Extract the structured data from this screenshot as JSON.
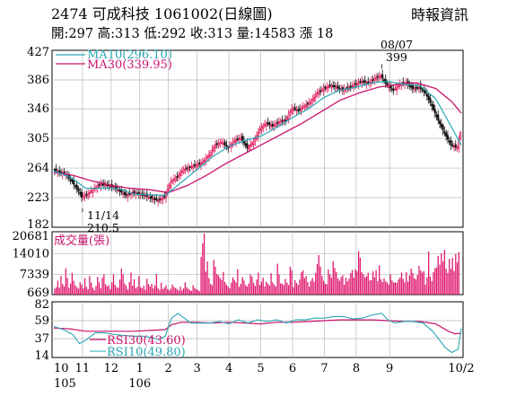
{
  "header": {
    "title": "2474  可成科技 1061002(日線圖)",
    "quote": "開:297 高:313 低:292 收:313 量:14583 漲 18",
    "source": "時報資訊"
  },
  "colors": {
    "background": "#ffffff",
    "grid": "#b9b9b9",
    "frame": "#000000",
    "up_candle": "#e0195a",
    "down_candle": "#111111",
    "ma10": "#2aa7b5",
    "ma30": "#c8146c",
    "volume": "#e0196f",
    "rsi30": "#c8146c",
    "rsi10": "#2aa7b5"
  },
  "chart_data": [
    {
      "type": "candlestick",
      "name": "price",
      "ylim": [
        182,
        427
      ],
      "yticks": [
        427,
        386,
        346,
        305,
        264,
        223,
        182
      ],
      "legend": [
        {
          "label": "MA10(296.10)",
          "color": "#2aa7b5"
        },
        {
          "label": "MA30(339.95)",
          "color": "#c8146c"
        }
      ],
      "annotations": [
        {
          "label": "08/07",
          "value": "399"
        },
        {
          "label": "11/14",
          "value": "210.5"
        }
      ],
      "low_point": {
        "x": 18,
        "y": 210.5
      },
      "high_point": {
        "x": 206,
        "y": 399
      },
      "close_path": [
        [
          0,
          262
        ],
        [
          4,
          258
        ],
        [
          8,
          255
        ],
        [
          12,
          245
        ],
        [
          16,
          232
        ],
        [
          18,
          224
        ],
        [
          22,
          228
        ],
        [
          26,
          236
        ],
        [
          30,
          242
        ],
        [
          34,
          240
        ],
        [
          38,
          238
        ],
        [
          42,
          232
        ],
        [
          46,
          226
        ],
        [
          50,
          230
        ],
        [
          54,
          228
        ],
        [
          58,
          226
        ],
        [
          62,
          222
        ],
        [
          66,
          219
        ],
        [
          70,
          224
        ],
        [
          74,
          245
        ],
        [
          78,
          252
        ],
        [
          82,
          262
        ],
        [
          86,
          265
        ],
        [
          90,
          268
        ],
        [
          94,
          272
        ],
        [
          98,
          282
        ],
        [
          102,
          296
        ],
        [
          106,
          300
        ],
        [
          110,
          292
        ],
        [
          114,
          302
        ],
        [
          118,
          306
        ],
        [
          122,
          292
        ],
        [
          126,
          300
        ],
        [
          130,
          318
        ],
        [
          134,
          326
        ],
        [
          138,
          322
        ],
        [
          142,
          328
        ],
        [
          146,
          330
        ],
        [
          150,
          346
        ],
        [
          154,
          344
        ],
        [
          158,
          350
        ],
        [
          162,
          356
        ],
        [
          166,
          368
        ],
        [
          170,
          374
        ],
        [
          174,
          378
        ],
        [
          178,
          376
        ],
        [
          182,
          372
        ],
        [
          186,
          376
        ],
        [
          190,
          380
        ],
        [
          194,
          384
        ],
        [
          198,
          381
        ],
        [
          202,
          388
        ],
        [
          206,
          392
        ],
        [
          210,
          378
        ],
        [
          214,
          372
        ],
        [
          218,
          380
        ],
        [
          222,
          382
        ],
        [
          226,
          374
        ],
        [
          230,
          376
        ],
        [
          234,
          368
        ],
        [
          238,
          350
        ],
        [
          242,
          330
        ],
        [
          246,
          312
        ],
        [
          250,
          296
        ],
        [
          254,
          292
        ],
        [
          256,
          313
        ]
      ],
      "ma10_path": [
        [
          0,
          260
        ],
        [
          10,
          252
        ],
        [
          20,
          236
        ],
        [
          30,
          236
        ],
        [
          40,
          236
        ],
        [
          50,
          228
        ],
        [
          60,
          227
        ],
        [
          70,
          226
        ],
        [
          80,
          244
        ],
        [
          90,
          262
        ],
        [
          100,
          280
        ],
        [
          110,
          294
        ],
        [
          120,
          302
        ],
        [
          130,
          308
        ],
        [
          140,
          320
        ],
        [
          150,
          334
        ],
        [
          160,
          346
        ],
        [
          170,
          362
        ],
        [
          180,
          372
        ],
        [
          190,
          376
        ],
        [
          200,
          382
        ],
        [
          210,
          384
        ],
        [
          220,
          380
        ],
        [
          230,
          378
        ],
        [
          240,
          360
        ],
        [
          250,
          320
        ],
        [
          256,
          296.1
        ]
      ],
      "ma30_path": [
        [
          0,
          258
        ],
        [
          12,
          254
        ],
        [
          24,
          246
        ],
        [
          36,
          240
        ],
        [
          48,
          236
        ],
        [
          60,
          234
        ],
        [
          72,
          230
        ],
        [
          84,
          240
        ],
        [
          96,
          254
        ],
        [
          108,
          270
        ],
        [
          120,
          284
        ],
        [
          132,
          298
        ],
        [
          144,
          312
        ],
        [
          156,
          326
        ],
        [
          168,
          342
        ],
        [
          180,
          358
        ],
        [
          192,
          368
        ],
        [
          204,
          376
        ],
        [
          216,
          380
        ],
        [
          228,
          382
        ],
        [
          240,
          374
        ],
        [
          250,
          356
        ],
        [
          256,
          339.95
        ]
      ]
    },
    {
      "type": "bar",
      "name": "volume",
      "legend": "成交量(張)",
      "ylim": [
        669,
        20681
      ],
      "yticks": [
        20681,
        14010,
        7339,
        669
      ],
      "values": [
        2600,
        3100,
        5200,
        2900,
        6800,
        4200,
        3300,
        9300,
        6100,
        2900,
        4300,
        7800,
        5200,
        3700,
        3100,
        2600,
        4700,
        3900,
        2700,
        6100,
        3200,
        2400,
        6800,
        4600,
        2900,
        2100,
        3500,
        6500,
        4700,
        2800,
        6200,
        7300,
        4100,
        3400,
        3800,
        2500,
        4700,
        7300,
        3900,
        3100,
        2900,
        5600,
        9200,
        7300,
        4300,
        3600,
        2300,
        4800,
        7900,
        3600,
        5700,
        2800,
        3200,
        6700,
        3100,
        2700,
        3600,
        2300,
        5900,
        4100,
        3300,
        4200,
        2700,
        3700,
        7400,
        2800,
        2200,
        4600,
        2500,
        3000,
        3700,
        2500,
        2000,
        2600,
        4000,
        3200,
        2800,
        2400,
        2000,
        3300,
        2100,
        2700,
        4700,
        3100,
        2600,
        2200,
        1900,
        3800,
        2900,
        2400,
        2200,
        1800,
        13000,
        17500,
        20681,
        8200,
        11500,
        6100,
        4200,
        3700,
        12100,
        9800,
        7400,
        7000,
        6100,
        5400,
        8100,
        4800,
        3900,
        3300,
        2700,
        4600,
        6300,
        5500,
        4700,
        9000,
        3200,
        4200,
        6400,
        5300,
        3800,
        3300,
        4300,
        7300,
        6600,
        4600,
        3500,
        5600,
        7900,
        3800,
        4900,
        6200,
        3300,
        4900,
        4300,
        3600,
        7700,
        4700,
        3900,
        3300,
        10800,
        7300,
        4400,
        4200,
        3800,
        5800,
        4600,
        3800,
        9800,
        8600,
        3100,
        5400,
        4500,
        3800,
        5600,
        8000,
        8600,
        6100,
        6800,
        4800,
        3300,
        5200,
        6100,
        4900,
        7800,
        10700,
        13600,
        9900,
        6800,
        5200,
        4200,
        4100,
        8900,
        7300,
        6200,
        11600,
        9400,
        8100,
        6000,
        5200,
        6400,
        7000,
        3900,
        6200,
        5000,
        5900,
        7700,
        8700,
        6200,
        9000,
        8300,
        14900,
        12800,
        8000,
        7300,
        6300,
        6700,
        7800,
        5300,
        5400,
        8300,
        6300,
        8700,
        5000,
        10300,
        5700,
        4800,
        6000,
        5100,
        4600,
        3900,
        7300,
        5300,
        4600,
        4700,
        4500,
        5600,
        6200,
        7900,
        5800,
        4700,
        8100,
        4900,
        6900,
        9200,
        7800,
        6100,
        5600,
        7100,
        10100,
        8600,
        7900,
        8400,
        4000,
        6300,
        14800,
        6600,
        5100,
        8000,
        9300,
        9600,
        13400,
        10500,
        14200,
        11500,
        15300,
        9200,
        7800,
        12400,
        9100,
        12700,
        8400,
        14000,
        11200,
        14583
      ],
      "xlabels": [
        "10",
        "11",
        "12",
        "1",
        "2",
        "3",
        "4",
        "5",
        "6",
        "7",
        "8",
        "9",
        "10/2"
      ],
      "xlabels_sub": [
        "105",
        "",
        "",
        "106",
        "",
        "",
        "",
        "",
        "",
        "",
        "",
        "",
        ""
      ],
      "xlabel_positions": [
        0,
        18,
        36,
        54,
        72,
        90,
        110,
        130,
        150,
        170,
        190,
        211,
        248
      ]
    },
    {
      "type": "line",
      "name": "rsi",
      "ylim": [
        14,
        82
      ],
      "yticks": [
        82,
        59,
        37,
        14
      ],
      "series": [
        {
          "name": "RSI30(43.60)",
          "color": "#c8146c",
          "path": [
            [
              0,
              50
            ],
            [
              10,
              49
            ],
            [
              20,
              46
            ],
            [
              30,
              46
            ],
            [
              40,
              46
            ],
            [
              50,
              46
            ],
            [
              60,
              47
            ],
            [
              70,
              48
            ],
            [
              74,
              54
            ],
            [
              80,
              57
            ],
            [
              90,
              57
            ],
            [
              100,
              56
            ],
            [
              110,
              57
            ],
            [
              120,
              56
            ],
            [
              130,
              55
            ],
            [
              140,
              57
            ],
            [
              150,
              57
            ],
            [
              160,
              58
            ],
            [
              170,
              59
            ],
            [
              180,
              60
            ],
            [
              190,
              60
            ],
            [
              200,
              60
            ],
            [
              210,
              59
            ],
            [
              220,
              58
            ],
            [
              230,
              58
            ],
            [
              240,
              55
            ],
            [
              248,
              46
            ],
            [
              252,
              43
            ],
            [
              256,
              43.6
            ]
          ]
        },
        {
          "name": "RSI10(49.80)",
          "color": "#2aa7b5",
          "path": [
            [
              0,
              52
            ],
            [
              6,
              48
            ],
            [
              12,
              42
            ],
            [
              16,
              31
            ],
            [
              20,
              35
            ],
            [
              26,
              44
            ],
            [
              32,
              44
            ],
            [
              38,
              42
            ],
            [
              44,
              41
            ],
            [
              50,
              40
            ],
            [
              56,
              40
            ],
            [
              62,
              38
            ],
            [
              66,
              36
            ],
            [
              70,
              40
            ],
            [
              74,
              62
            ],
            [
              78,
              68
            ],
            [
              82,
              62
            ],
            [
              86,
              56
            ],
            [
              92,
              56
            ],
            [
              98,
              56
            ],
            [
              104,
              58
            ],
            [
              110,
              55
            ],
            [
              116,
              60
            ],
            [
              122,
              56
            ],
            [
              128,
              60
            ],
            [
              134,
              58
            ],
            [
              140,
              60
            ],
            [
              146,
              56
            ],
            [
              152,
              60
            ],
            [
              158,
              60
            ],
            [
              164,
              62
            ],
            [
              170,
              62
            ],
            [
              176,
              64
            ],
            [
              182,
              64
            ],
            [
              188,
              61
            ],
            [
              194,
              62
            ],
            [
              200,
              66
            ],
            [
              206,
              68
            ],
            [
              210,
              60
            ],
            [
              214,
              56
            ],
            [
              220,
              58
            ],
            [
              226,
              58
            ],
            [
              232,
              56
            ],
            [
              238,
              46
            ],
            [
              242,
              36
            ],
            [
              246,
              26
            ],
            [
              250,
              20
            ],
            [
              254,
              24
            ],
            [
              256,
              49.8
            ]
          ]
        }
      ]
    }
  ]
}
